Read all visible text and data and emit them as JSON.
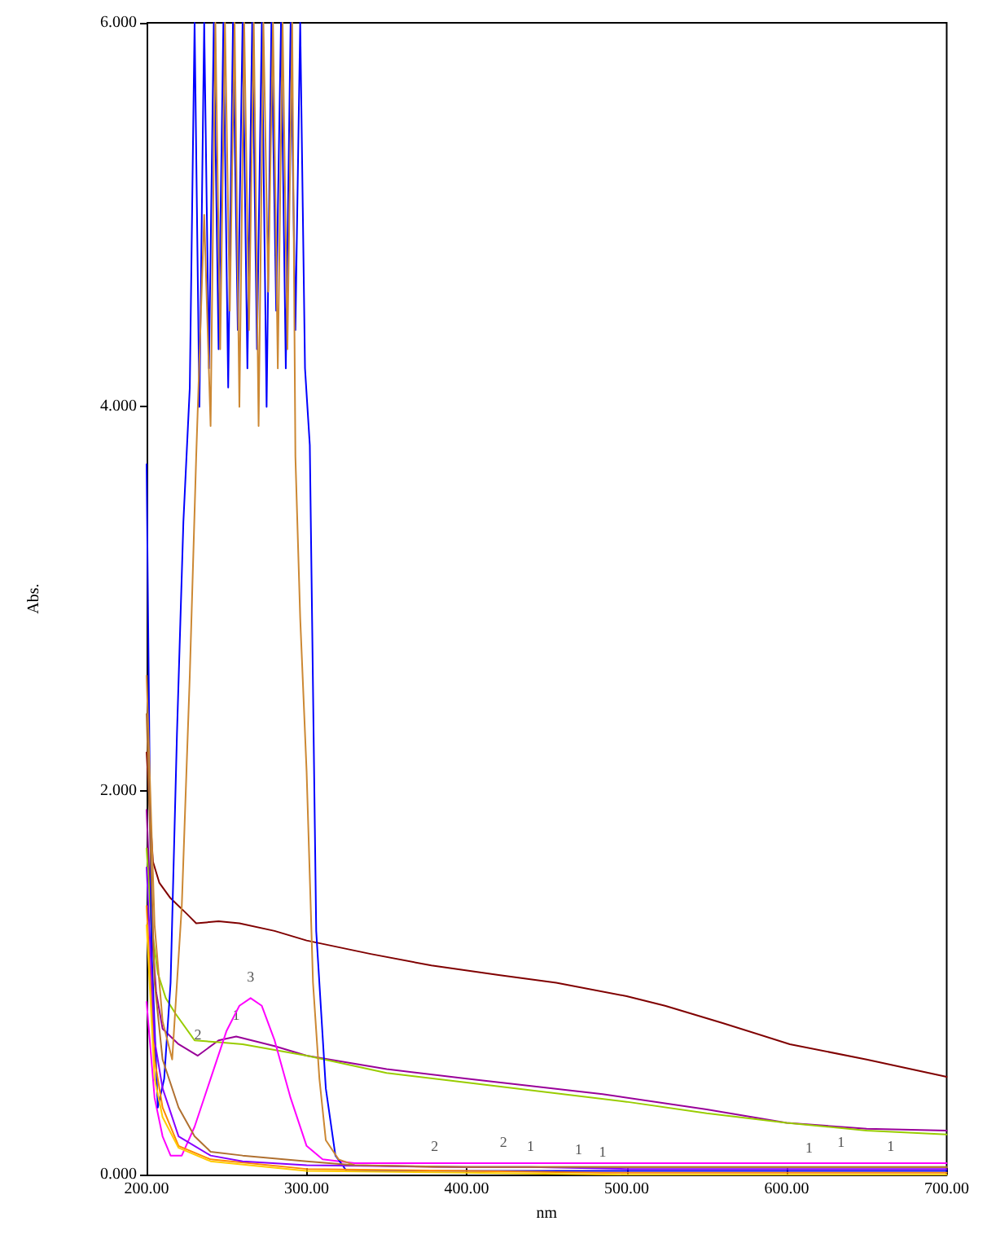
{
  "chart_data": {
    "type": "line",
    "xlabel": "nm",
    "ylabel": "Abs.",
    "xlim": [
      200,
      700
    ],
    "ylim": [
      0,
      6
    ],
    "xticks": [
      {
        "value": 200,
        "label": "200.00"
      },
      {
        "value": 300,
        "label": "300.00"
      },
      {
        "value": 400,
        "label": "400.00"
      },
      {
        "value": 500,
        "label": "500.00"
      },
      {
        "value": 600,
        "label": "600.00"
      },
      {
        "value": 700,
        "label": "700.00"
      }
    ],
    "yticks": [
      {
        "value": 0,
        "label": "0.000"
      },
      {
        "value": 2,
        "label": "2.000"
      },
      {
        "value": 4,
        "label": "4.000"
      },
      {
        "value": 6,
        "label": "6.000"
      }
    ],
    "grid": false,
    "marker": "none",
    "line_style": "solid",
    "series": [
      {
        "color": "#800000",
        "x": [
          200,
          202,
          204,
          208,
          215,
          225,
          231,
          245,
          258,
          280,
          300,
          340,
          378,
          420,
          456,
          500,
          524,
          560,
          602,
          650,
          700
        ],
        "values": [
          2.2,
          1.9,
          1.63,
          1.52,
          1.44,
          1.36,
          1.31,
          1.32,
          1.31,
          1.27,
          1.22,
          1.15,
          1.09,
          1.04,
          1.0,
          0.93,
          0.88,
          0.79,
          0.68,
          0.6,
          0.51
        ]
      },
      {
        "color": "#990099",
        "x": [
          200,
          203,
          206,
          210,
          220,
          232,
          245,
          256,
          280,
          300,
          350,
          400,
          485,
          550,
          600,
          650,
          700
        ],
        "values": [
          1.9,
          1.3,
          0.95,
          0.76,
          0.68,
          0.62,
          0.7,
          0.72,
          0.67,
          0.62,
          0.55,
          0.5,
          0.42,
          0.34,
          0.27,
          0.24,
          0.23
        ]
      },
      {
        "color": "#99cc00",
        "x": [
          200,
          203,
          207,
          212,
          218,
          230,
          245,
          260,
          300,
          350,
          400,
          500,
          550,
          600,
          650,
          700
        ],
        "values": [
          1.7,
          1.3,
          1.05,
          0.92,
          0.84,
          0.7,
          0.69,
          0.68,
          0.62,
          0.53,
          0.48,
          0.38,
          0.32,
          0.27,
          0.23,
          0.21
        ]
      },
      {
        "color": "#ff00ff",
        "x": [
          200,
          205,
          210,
          215,
          222,
          230,
          240,
          250,
          258,
          265,
          272,
          280,
          290,
          300,
          310,
          330,
          400,
          423,
          500,
          600,
          634,
          700
        ],
        "values": [
          0.9,
          0.4,
          0.2,
          0.1,
          0.1,
          0.25,
          0.5,
          0.75,
          0.88,
          0.92,
          0.88,
          0.7,
          0.4,
          0.15,
          0.08,
          0.06,
          0.06,
          0.06,
          0.06,
          0.06,
          0.06,
          0.06
        ]
      },
      {
        "color": "#0000ff",
        "x": [
          200,
          203,
          207,
          211,
          215,
          219,
          223,
          227,
          230,
          233,
          236,
          239,
          242,
          245,
          248,
          251,
          254,
          257,
          260,
          263,
          266,
          269,
          272,
          275,
          278,
          281,
          284,
          287,
          290,
          293,
          296,
          299,
          302,
          306,
          312,
          318,
          325,
          400,
          470,
          500,
          600,
          700
        ],
        "values": [
          3.7,
          1.2,
          0.35,
          0.5,
          1.0,
          2.3,
          3.4,
          4.1,
          6,
          4.0,
          6,
          4.2,
          6,
          4.3,
          6,
          4.1,
          6,
          4.4,
          6,
          4.2,
          6,
          4.3,
          6,
          4.0,
          6,
          4.5,
          6,
          4.2,
          6,
          4.4,
          6,
          4.2,
          3.8,
          1.27,
          0.45,
          0.1,
          0.02,
          0.02,
          0.02,
          0.02,
          0.02,
          0.02
        ]
      },
      {
        "color": "#cc8833",
        "x": [
          200,
          205,
          210,
          216,
          222,
          227,
          231,
          236,
          240,
          243,
          246,
          249,
          252,
          255,
          258,
          261,
          264,
          267,
          270,
          273,
          276,
          279,
          282,
          285,
          288,
          291,
          293,
          296,
          300,
          304,
          308,
          312,
          320,
          330,
          380,
          400,
          500,
          600,
          665,
          700
        ],
        "values": [
          2.6,
          1.3,
          0.8,
          0.6,
          1.4,
          2.6,
          3.74,
          5.0,
          3.9,
          6,
          4.3,
          6,
          4.5,
          6,
          4.0,
          6,
          4.4,
          6,
          3.9,
          6,
          4.6,
          6,
          4.2,
          6,
          4.3,
          6,
          3.74,
          2.9,
          2.1,
          1.0,
          0.5,
          0.18,
          0.08,
          0.05,
          0.04,
          0.04,
          0.04,
          0.04,
          0.04,
          0.04
        ]
      },
      {
        "color": "#ff8800",
        "x": [
          200,
          205,
          210,
          220,
          240,
          300,
          400,
          485,
          500,
          600,
          700
        ],
        "values": [
          1.4,
          0.6,
          0.35,
          0.15,
          0.08,
          0.03,
          0.02,
          0.01,
          0.01,
          0.01,
          0.01
        ]
      },
      {
        "color": "#ffcc00",
        "x": [
          200,
          205,
          210,
          220,
          240,
          300,
          400,
          500,
          600,
          700
        ],
        "values": [
          1.3,
          0.5,
          0.3,
          0.14,
          0.07,
          0.02,
          0.01,
          0.0,
          0.0,
          0.0
        ]
      },
      {
        "color": "#8800ff",
        "x": [
          200,
          205,
          210,
          220,
          240,
          260,
          300,
          400,
          440,
          500,
          600,
          614,
          700
        ],
        "values": [
          1.6,
          0.7,
          0.45,
          0.2,
          0.1,
          0.07,
          0.05,
          0.04,
          0.04,
          0.03,
          0.03,
          0.03,
          0.03
        ]
      },
      {
        "color": "#b07030",
        "x": [
          200,
          205,
          210,
          220,
          230,
          240,
          260,
          300,
          330,
          400,
          500,
          600,
          700
        ],
        "values": [
          2.4,
          1.0,
          0.6,
          0.35,
          0.2,
          0.12,
          0.1,
          0.07,
          0.05,
          0.04,
          0.04,
          0.04,
          0.04
        ]
      }
    ],
    "annotations": [
      {
        "text": "3",
        "x": 265,
        "y": 0.92
      },
      {
        "text": "1",
        "x": 256,
        "y": 0.72
      },
      {
        "text": "2",
        "x": 232,
        "y": 0.62
      },
      {
        "text": "2",
        "x": 380,
        "y": 0.04
      },
      {
        "text": "2",
        "x": 423,
        "y": 0.06
      },
      {
        "text": "1",
        "x": 440,
        "y": 0.04
      },
      {
        "text": "1",
        "x": 470,
        "y": 0.02
      },
      {
        "text": "1",
        "x": 485,
        "y": 0.01
      },
      {
        "text": "1",
        "x": 614,
        "y": 0.03
      },
      {
        "text": "1",
        "x": 634,
        "y": 0.06
      },
      {
        "text": "1",
        "x": 665,
        "y": 0.04
      }
    ]
  }
}
